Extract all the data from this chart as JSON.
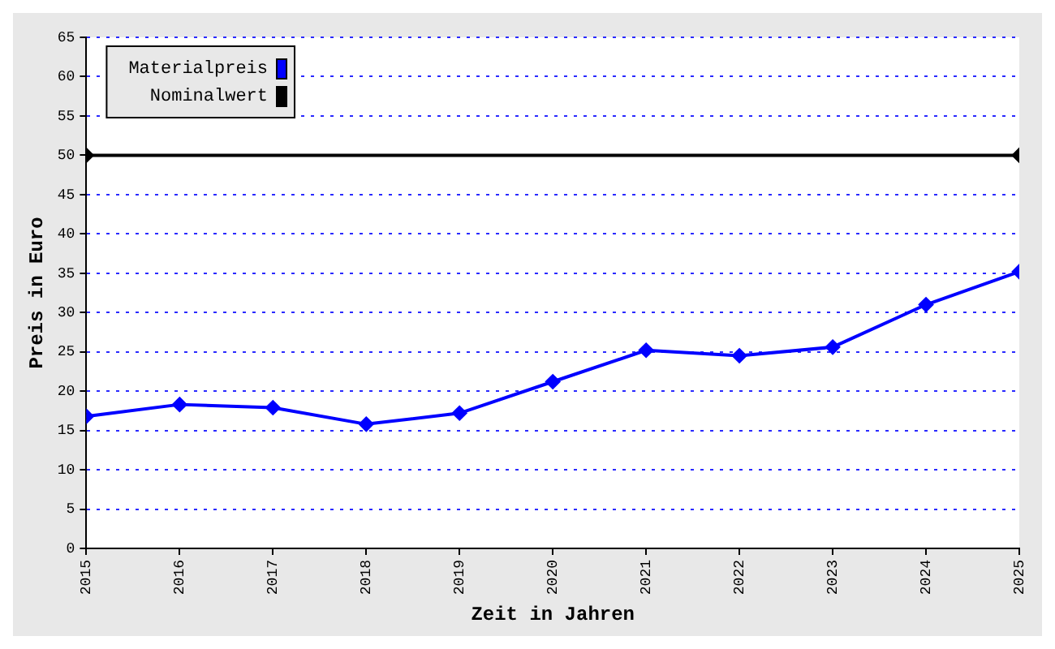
{
  "chart_data": {
    "type": "line",
    "xlabel": "Zeit in Jahren",
    "ylabel": "Preis in Euro",
    "x": [
      2015,
      2016,
      2017,
      2018,
      2019,
      2020,
      2021,
      2022,
      2023,
      2024,
      2025
    ],
    "xlim": [
      2015,
      2025
    ],
    "xticks": [
      2015,
      2016,
      2017,
      2018,
      2019,
      2020,
      2021,
      2022,
      2023,
      2024,
      2025
    ],
    "ylim": [
      0,
      65
    ],
    "yticks": [
      0,
      5,
      10,
      15,
      20,
      25,
      30,
      35,
      40,
      45,
      50,
      55,
      60,
      65
    ],
    "series": [
      {
        "name": "Materialpreis",
        "color": "#0000ff",
        "values": [
          16.8,
          18.3,
          17.9,
          15.8,
          17.2,
          21.2,
          25.2,
          24.5,
          25.6,
          31.0,
          35.2
        ]
      },
      {
        "name": "Nominalwert",
        "color": "#000000",
        "x": [
          2015,
          2025
        ],
        "values": [
          50,
          50
        ]
      }
    ],
    "grid": "y",
    "legend": "top left",
    "marker": "diamond",
    "line_style": "solid"
  }
}
